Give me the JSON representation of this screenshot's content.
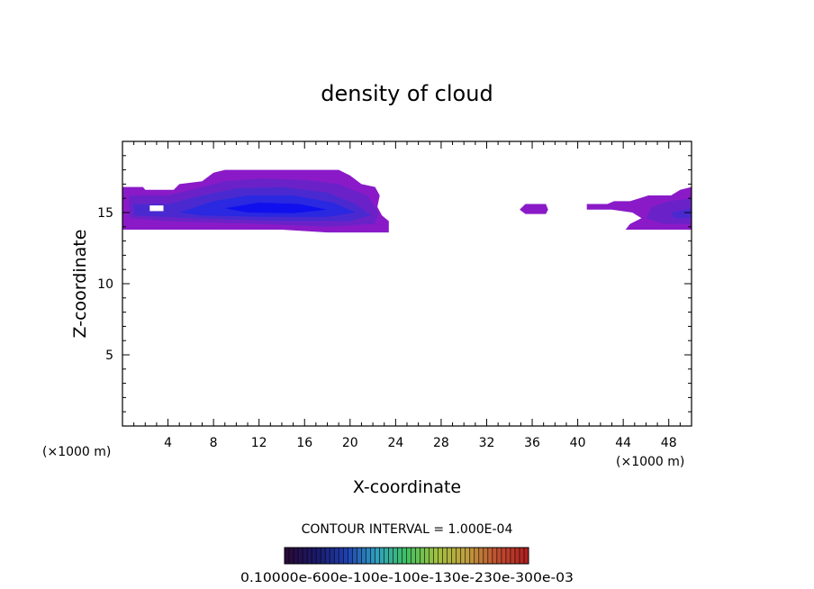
{
  "chart_data": {
    "type": "heatmap",
    "title": "density of cloud",
    "xlabel": "X-coordinate",
    "ylabel": "Z-coordinate",
    "x_unit_left": "(×1000 m)",
    "x_unit_right": "(×1000 m)",
    "xlim": [
      0,
      50
    ],
    "ylim": [
      0,
      20
    ],
    "x_ticks": [
      4,
      8,
      12,
      16,
      20,
      24,
      28,
      32,
      36,
      40,
      44,
      48
    ],
    "y_ticks": [
      5,
      10,
      15
    ],
    "contour_interval_text": "CONTOUR INTERVAL = 1.000E-04",
    "colorbar_labels_text": "0.10000e-600e-100e-100e-130e-230e-300e-03",
    "colorbar_colors": [
      "#2a0a3a",
      "#1a1a6a",
      "#2040b0",
      "#30a0c0",
      "#40c060",
      "#a0c040",
      "#c0a040",
      "#c05030",
      "#b02020"
    ],
    "cloud_colors": {
      "edge": "#8a1ac8",
      "outer": "#6a22c8",
      "mid": "#4a2ad0",
      "inner": "#2a28e0",
      "core": "#1010ee"
    },
    "cloud_regions": [
      {
        "name": "main-cloud",
        "level": "edge",
        "outline": [
          [
            0,
            16.8
          ],
          [
            1.8,
            16.8
          ],
          [
            2,
            16.6
          ],
          [
            4.5,
            16.6
          ],
          [
            5,
            17
          ],
          [
            7,
            17.2
          ],
          [
            8,
            17.8
          ],
          [
            9,
            18
          ],
          [
            19,
            18
          ],
          [
            20,
            17.6
          ],
          [
            21,
            17
          ],
          [
            22.2,
            16.8
          ],
          [
            22.6,
            16.2
          ],
          [
            22.4,
            15.4
          ],
          [
            22.8,
            14.8
          ],
          [
            23.4,
            14.4
          ],
          [
            23.4,
            13.6
          ],
          [
            18,
            13.6
          ],
          [
            14,
            13.8
          ],
          [
            0,
            13.8
          ]
        ]
      },
      {
        "name": "main-cloud-outer",
        "level": "outer",
        "outline": [
          [
            0.6,
            16.2
          ],
          [
            4,
            16.2
          ],
          [
            6,
            16.6
          ],
          [
            9,
            17.2
          ],
          [
            12,
            17.4
          ],
          [
            16,
            17.3
          ],
          [
            19,
            17.0
          ],
          [
            21.5,
            16.2
          ],
          [
            22.5,
            15
          ],
          [
            22.2,
            14.2
          ],
          [
            18,
            14
          ],
          [
            12,
            14.2
          ],
          [
            4,
            14.4
          ],
          [
            0.6,
            14.6
          ]
        ]
      },
      {
        "name": "main-cloud-mid",
        "level": "mid",
        "outline": [
          [
            1,
            15.6
          ],
          [
            4,
            15.6
          ],
          [
            7,
            16.2
          ],
          [
            10,
            16.7
          ],
          [
            14,
            16.8
          ],
          [
            18,
            16.4
          ],
          [
            20.5,
            15.6
          ],
          [
            21.8,
            14.8
          ],
          [
            20,
            14.4
          ],
          [
            14,
            14.4
          ],
          [
            6,
            14.6
          ],
          [
            1,
            14.8
          ]
        ]
      },
      {
        "name": "main-cloud-inner",
        "level": "inner",
        "outline": [
          [
            5,
            15.0
          ],
          [
            8,
            15.8
          ],
          [
            11,
            16.2
          ],
          [
            15,
            16.2
          ],
          [
            18.5,
            15.7
          ],
          [
            20.5,
            15.0
          ],
          [
            18,
            14.7
          ],
          [
            12,
            14.7
          ],
          [
            7,
            14.8
          ]
        ]
      },
      {
        "name": "main-cloud-core",
        "level": "core",
        "outline": [
          [
            9,
            15.3
          ],
          [
            12,
            15.7
          ],
          [
            15.5,
            15.6
          ],
          [
            18,
            15.2
          ],
          [
            15,
            14.95
          ],
          [
            11,
            15.0
          ]
        ]
      },
      {
        "name": "small-cloud-36",
        "level": "edge",
        "outline": [
          [
            34.9,
            15.2
          ],
          [
            35.4,
            15.6
          ],
          [
            37.2,
            15.6
          ],
          [
            37.4,
            15.2
          ],
          [
            37.2,
            14.9
          ],
          [
            35.4,
            14.9
          ]
        ]
      },
      {
        "name": "right-cloud",
        "level": "edge",
        "outline": [
          [
            40.8,
            15.6
          ],
          [
            42.6,
            15.6
          ],
          [
            43.2,
            15.8
          ],
          [
            44.6,
            15.8
          ],
          [
            45.4,
            16.0
          ],
          [
            46.2,
            16.2
          ],
          [
            47.4,
            16.2
          ],
          [
            48.2,
            16.2
          ],
          [
            49,
            16.6
          ],
          [
            50,
            16.8
          ],
          [
            50,
            13.8
          ],
          [
            44.2,
            13.8
          ],
          [
            44.6,
            14.2
          ],
          [
            45.6,
            14.6
          ],
          [
            44.8,
            15.0
          ],
          [
            43,
            15.2
          ],
          [
            40.8,
            15.2
          ]
        ]
      },
      {
        "name": "right-cloud-inner",
        "level": "outer",
        "outline": [
          [
            46.5,
            15.4
          ],
          [
            48,
            15.8
          ],
          [
            50,
            16.0
          ],
          [
            50,
            14.2
          ],
          [
            47.5,
            14.2
          ],
          [
            46,
            14.6
          ]
        ]
      },
      {
        "name": "right-cloud-core",
        "level": "mid",
        "outline": [
          [
            48.2,
            15.0
          ],
          [
            50,
            15.3
          ],
          [
            50,
            14.6
          ],
          [
            48.5,
            14.6
          ]
        ]
      }
    ],
    "holes": [
      {
        "name": "cloud-gap",
        "outline": [
          [
            2.4,
            15.5
          ],
          [
            3.6,
            15.5
          ],
          [
            3.6,
            15.1
          ],
          [
            2.4,
            15.1
          ]
        ]
      }
    ],
    "grid": false
  }
}
